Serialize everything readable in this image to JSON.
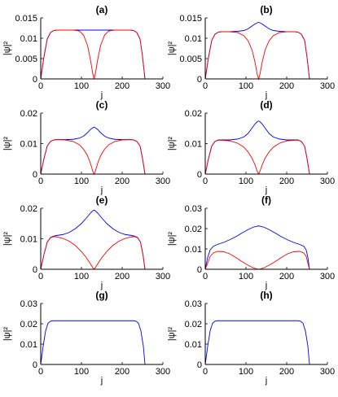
{
  "chart_data": [
    {
      "panel": "a",
      "type": "line",
      "title": "(a)",
      "xlabel": "j",
      "ylabel": "|ψ|²",
      "xlim": [
        0,
        300
      ],
      "ylim": [
        0,
        0.015
      ],
      "xticks": [
        0,
        100,
        200,
        300
      ],
      "xtick_labels": [
        "0",
        "100",
        "200",
        "300"
      ],
      "yticks": [
        0,
        0.005,
        0.01,
        0.015
      ],
      "ytick_labels": [
        "0",
        "0.005",
        "0.01",
        "0.015"
      ],
      "series": [
        {
          "color": "#0000ff",
          "x": [
            0,
            8,
            16,
            24,
            32,
            40,
            60,
            100,
            130,
            160,
            200,
            220,
            228,
            236,
            244,
            250,
            256
          ],
          "y": [
            0,
            0.0055,
            0.0098,
            0.0114,
            0.0119,
            0.012,
            0.012,
            0.012,
            0.012,
            0.012,
            0.012,
            0.012,
            0.0119,
            0.0114,
            0.0098,
            0.0055,
            0
          ]
        },
        {
          "color": "#ff0000",
          "x": [
            0,
            8,
            16,
            24,
            32,
            40,
            60,
            80,
            95,
            105,
            115,
            122,
            128,
            131,
            134,
            140,
            147,
            157,
            167,
            182,
            200,
            220,
            228,
            236,
            244,
            250,
            256
          ],
          "y": [
            0,
            0.0055,
            0.0098,
            0.0114,
            0.0119,
            0.012,
            0.012,
            0.012,
            0.0118,
            0.0108,
            0.0082,
            0.0048,
            0.0012,
            0,
            0.0012,
            0.0048,
            0.0082,
            0.0108,
            0.0118,
            0.012,
            0.012,
            0.012,
            0.0119,
            0.0114,
            0.0098,
            0.0055,
            0
          ]
        }
      ]
    },
    {
      "panel": "b",
      "type": "line",
      "title": "(b)",
      "xlabel": "j",
      "ylabel": "|ψ|²",
      "xlim": [
        0,
        300
      ],
      "ylim": [
        0,
        0.015
      ],
      "xticks": [
        0,
        100,
        200,
        300
      ],
      "xtick_labels": [
        "0",
        "100",
        "200",
        "300"
      ],
      "yticks": [
        0,
        0.005,
        0.01,
        0.015
      ],
      "ytick_labels": [
        "0",
        "0.005",
        "0.01",
        "0.015"
      ],
      "series": [
        {
          "color": "#0000ff",
          "x": [
            0,
            8,
            16,
            24,
            32,
            40,
            60,
            80,
            95,
            105,
            115,
            122,
            128,
            131,
            134,
            140,
            147,
            157,
            167,
            182,
            200,
            220,
            228,
            236,
            244,
            250,
            256
          ],
          "y": [
            0,
            0.0053,
            0.0095,
            0.011,
            0.0115,
            0.0116,
            0.0116,
            0.0117,
            0.0119,
            0.0123,
            0.013,
            0.0135,
            0.0138,
            0.0139,
            0.0138,
            0.0135,
            0.013,
            0.0123,
            0.0119,
            0.0117,
            0.0116,
            0.0116,
            0.0115,
            0.011,
            0.0095,
            0.0053,
            0
          ]
        },
        {
          "color": "#ff0000",
          "x": [
            0,
            8,
            16,
            24,
            32,
            40,
            60,
            80,
            95,
            105,
            115,
            122,
            128,
            131,
            134,
            140,
            147,
            157,
            167,
            182,
            200,
            220,
            228,
            236,
            244,
            250,
            256
          ],
          "y": [
            0,
            0.0053,
            0.0095,
            0.011,
            0.0115,
            0.0116,
            0.0116,
            0.0114,
            0.0106,
            0.0094,
            0.0071,
            0.0042,
            0.001,
            0,
            0.001,
            0.0042,
            0.0071,
            0.0094,
            0.0106,
            0.0114,
            0.0116,
            0.0116,
            0.0115,
            0.011,
            0.0095,
            0.0053,
            0
          ]
        }
      ]
    },
    {
      "panel": "c",
      "type": "line",
      "title": "(c)",
      "xlabel": "j",
      "ylabel": "|ψ|²",
      "xlim": [
        0,
        300
      ],
      "ylim": [
        0,
        0.02
      ],
      "xticks": [
        0,
        100,
        200,
        300
      ],
      "xtick_labels": [
        "0",
        "100",
        "200",
        "300"
      ],
      "yticks": [
        0,
        0.01,
        0.02
      ],
      "ytick_labels": [
        "0",
        "0.01",
        "0.02"
      ],
      "series": [
        {
          "color": "#0000ff",
          "x": [
            0,
            8,
            16,
            24,
            32,
            40,
            60,
            80,
            95,
            105,
            115,
            122,
            128,
            131,
            134,
            140,
            147,
            157,
            167,
            182,
            200,
            220,
            228,
            236,
            244,
            250,
            256
          ],
          "y": [
            0,
            0.0051,
            0.0092,
            0.0107,
            0.0112,
            0.0113,
            0.0113,
            0.0114,
            0.0118,
            0.0124,
            0.0136,
            0.0146,
            0.0152,
            0.0154,
            0.0152,
            0.0146,
            0.0136,
            0.0124,
            0.0118,
            0.0114,
            0.0113,
            0.0113,
            0.0112,
            0.0107,
            0.0092,
            0.0051,
            0
          ]
        },
        {
          "color": "#ff0000",
          "x": [
            0,
            8,
            16,
            24,
            32,
            40,
            60,
            80,
            95,
            105,
            115,
            122,
            128,
            131,
            134,
            140,
            147,
            157,
            167,
            182,
            200,
            220,
            228,
            236,
            244,
            250,
            256
          ],
          "y": [
            0,
            0.0051,
            0.0092,
            0.0107,
            0.0112,
            0.0113,
            0.0112,
            0.0107,
            0.0096,
            0.0082,
            0.006,
            0.0036,
            0.0009,
            0,
            0.0009,
            0.0036,
            0.006,
            0.0082,
            0.0096,
            0.0107,
            0.0112,
            0.0113,
            0.0112,
            0.0107,
            0.0092,
            0.0051,
            0
          ]
        }
      ]
    },
    {
      "panel": "d",
      "type": "line",
      "title": "(d)",
      "xlabel": "j",
      "ylabel": "|ψ|²",
      "xlim": [
        0,
        300
      ],
      "ylim": [
        0,
        0.02
      ],
      "xticks": [
        0,
        100,
        200,
        300
      ],
      "xtick_labels": [
        "0",
        "100",
        "200",
        "300"
      ],
      "yticks": [
        0,
        0.01,
        0.02
      ],
      "ytick_labels": [
        "0",
        "0.01",
        "0.02"
      ],
      "series": [
        {
          "color": "#0000ff",
          "x": [
            0,
            8,
            16,
            24,
            32,
            40,
            60,
            80,
            95,
            105,
            115,
            122,
            128,
            131,
            134,
            140,
            147,
            157,
            167,
            182,
            200,
            220,
            228,
            236,
            244,
            250,
            256
          ],
          "y": [
            0,
            0.0051,
            0.0092,
            0.0107,
            0.0112,
            0.0112,
            0.0112,
            0.0115,
            0.0122,
            0.0133,
            0.0151,
            0.0164,
            0.0172,
            0.0174,
            0.0172,
            0.0164,
            0.0151,
            0.0133,
            0.0122,
            0.0115,
            0.0112,
            0.0112,
            0.0112,
            0.0107,
            0.0092,
            0.0051,
            0
          ]
        },
        {
          "color": "#ff0000",
          "x": [
            0,
            8,
            16,
            24,
            32,
            40,
            60,
            80,
            95,
            105,
            115,
            122,
            128,
            131,
            134,
            140,
            147,
            157,
            167,
            182,
            200,
            220,
            228,
            236,
            244,
            250,
            256
          ],
          "y": [
            0,
            0.0051,
            0.0092,
            0.0107,
            0.0111,
            0.0111,
            0.0109,
            0.0101,
            0.0088,
            0.0073,
            0.0052,
            0.0031,
            0.0008,
            0,
            0.0008,
            0.0031,
            0.0052,
            0.0073,
            0.0088,
            0.0101,
            0.0109,
            0.0111,
            0.0111,
            0.0107,
            0.0092,
            0.0051,
            0
          ]
        }
      ]
    },
    {
      "panel": "e",
      "type": "line",
      "title": "(e)",
      "xlabel": "j",
      "ylabel": "|ψ|²",
      "xlim": [
        0,
        300
      ],
      "ylim": [
        0,
        0.02
      ],
      "xticks": [
        0,
        100,
        200,
        300
      ],
      "xtick_labels": [
        "0",
        "100",
        "200",
        "300"
      ],
      "yticks": [
        0,
        0.01,
        0.02
      ],
      "ytick_labels": [
        "0",
        "0.01",
        "0.02"
      ],
      "series": [
        {
          "color": "#0000ff",
          "x": [
            0,
            8,
            16,
            24,
            32,
            40,
            55,
            70,
            85,
            100,
            112,
            122,
            128,
            131,
            134,
            140,
            150,
            162,
            177,
            192,
            207,
            222,
            230,
            238,
            245,
            251,
            256
          ],
          "y": [
            0,
            0.0049,
            0.0089,
            0.0104,
            0.0109,
            0.0111,
            0.0114,
            0.0121,
            0.0133,
            0.015,
            0.0168,
            0.0184,
            0.0192,
            0.0194,
            0.0192,
            0.0184,
            0.0168,
            0.015,
            0.0133,
            0.0121,
            0.0114,
            0.0111,
            0.0109,
            0.0104,
            0.0089,
            0.0049,
            0
          ]
        },
        {
          "color": "#ff0000",
          "x": [
            0,
            8,
            16,
            24,
            32,
            40,
            55,
            70,
            85,
            100,
            112,
            122,
            128,
            131,
            134,
            140,
            150,
            162,
            177,
            192,
            207,
            222,
            230,
            238,
            245,
            251,
            256
          ],
          "y": [
            0,
            0.0049,
            0.0089,
            0.0103,
            0.0107,
            0.0106,
            0.0101,
            0.0092,
            0.0078,
            0.0058,
            0.0038,
            0.0018,
            0.0005,
            0,
            0.0005,
            0.0018,
            0.0038,
            0.0058,
            0.0078,
            0.0092,
            0.0101,
            0.0106,
            0.0107,
            0.0103,
            0.0089,
            0.0049,
            0
          ]
        }
      ]
    },
    {
      "panel": "f",
      "type": "line",
      "title": "(f)",
      "xlabel": "j",
      "ylabel": "|ψ|²",
      "xlim": [
        0,
        300
      ],
      "ylim": [
        0,
        0.03
      ],
      "xticks": [
        0,
        100,
        200,
        300
      ],
      "xtick_labels": [
        "0",
        "100",
        "200",
        "300"
      ],
      "yticks": [
        0,
        0.01,
        0.02,
        0.03
      ],
      "ytick_labels": [
        "0",
        "0.01",
        "0.02",
        "0.03"
      ],
      "series": [
        {
          "color": "#0000ff",
          "x": [
            0,
            6,
            12,
            20,
            30,
            45,
            60,
            75,
            90,
            105,
            118,
            128,
            131,
            134,
            144,
            157,
            172,
            187,
            202,
            217,
            232,
            242,
            248,
            252,
            256
          ],
          "y": [
            0,
            0.0058,
            0.0095,
            0.0113,
            0.0122,
            0.0132,
            0.0145,
            0.016,
            0.0178,
            0.0195,
            0.0207,
            0.0212,
            0.0213,
            0.0212,
            0.0207,
            0.0195,
            0.0178,
            0.016,
            0.0145,
            0.0132,
            0.0122,
            0.0113,
            0.0095,
            0.0058,
            0
          ]
        },
        {
          "color": "#ff0000",
          "x": [
            0,
            6,
            12,
            20,
            30,
            45,
            60,
            75,
            90,
            105,
            118,
            128,
            131,
            134,
            144,
            157,
            172,
            187,
            202,
            217,
            232,
            242,
            248,
            252,
            256
          ],
          "y": [
            0,
            0.003,
            0.0063,
            0.008,
            0.0088,
            0.0086,
            0.0076,
            0.0058,
            0.0038,
            0.002,
            0.0007,
            0.0001,
            0,
            0.0001,
            0.0007,
            0.002,
            0.0038,
            0.0058,
            0.0076,
            0.0086,
            0.0088,
            0.008,
            0.0063,
            0.003,
            0
          ]
        }
      ]
    },
    {
      "panel": "g",
      "type": "line",
      "title": "(g)",
      "xlabel": "j",
      "ylabel": "|ψ|²",
      "xlim": [
        0,
        300
      ],
      "ylim": [
        0,
        0.03
      ],
      "xticks": [
        0,
        100,
        200,
        300
      ],
      "xtick_labels": [
        "0",
        "100",
        "200",
        "300"
      ],
      "yticks": [
        0,
        0.01,
        0.02,
        0.03
      ],
      "ytick_labels": [
        "0",
        "0.01",
        "0.02",
        "0.03"
      ],
      "series": [
        {
          "color": "#0000ff",
          "x": [
            0,
            6,
            12,
            18,
            24,
            30,
            40,
            60,
            130,
            200,
            220,
            228,
            234,
            240,
            246,
            252,
            256
          ],
          "y": [
            0,
            0.009,
            0.0165,
            0.0203,
            0.0213,
            0.0215,
            0.0215,
            0.0215,
            0.0215,
            0.0215,
            0.0215,
            0.0215,
            0.0213,
            0.0203,
            0.0165,
            0.009,
            0
          ]
        },
        {
          "color": "#ff0000",
          "x": [
            0,
            256
          ],
          "y": [
            0,
            0
          ]
        }
      ]
    },
    {
      "panel": "h",
      "type": "line",
      "title": "(h)",
      "xlabel": "j",
      "ylabel": "|ψ|²",
      "xlim": [
        0,
        300
      ],
      "ylim": [
        0,
        0.03
      ],
      "xticks": [
        0,
        100,
        200,
        300
      ],
      "xtick_labels": [
        "0",
        "100",
        "200",
        "300"
      ],
      "yticks": [
        0,
        0.01,
        0.02,
        0.03
      ],
      "ytick_labels": [
        "0",
        "0.01",
        "0.02",
        "0.03"
      ],
      "series": [
        {
          "color": "#0000ff",
          "x": [
            0,
            6,
            12,
            18,
            24,
            30,
            40,
            60,
            130,
            200,
            220,
            228,
            234,
            240,
            246,
            252,
            256
          ],
          "y": [
            0,
            0.009,
            0.0165,
            0.0203,
            0.0213,
            0.0215,
            0.0215,
            0.0215,
            0.0215,
            0.0215,
            0.0215,
            0.0215,
            0.0213,
            0.0203,
            0.0165,
            0.009,
            0
          ]
        },
        {
          "color": "#ff0000",
          "x": [
            0,
            256
          ],
          "y": [
            0,
            0
          ]
        }
      ]
    }
  ]
}
